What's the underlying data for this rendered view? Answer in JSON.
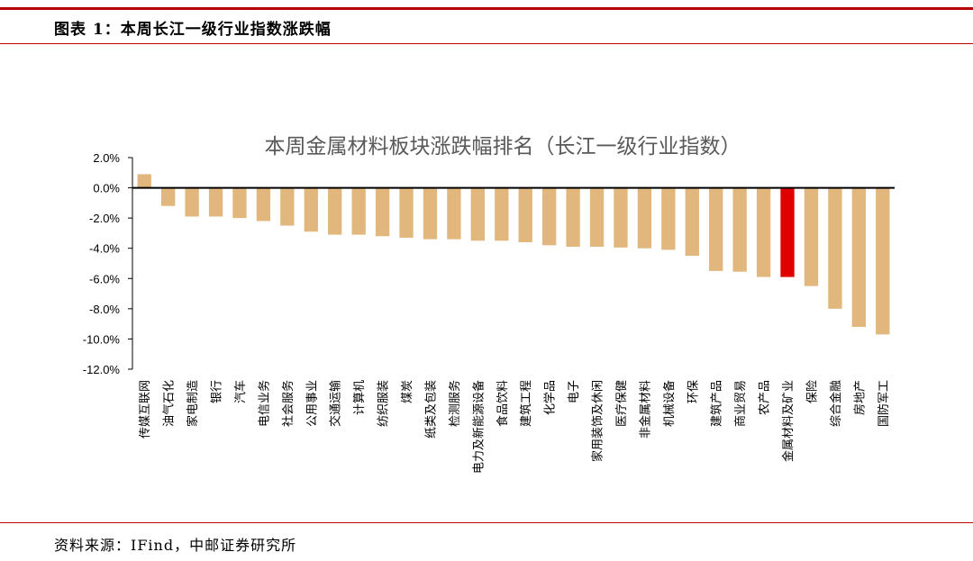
{
  "figure": {
    "title": "图表 1：本周长江一级行业指数涨跌幅",
    "source": "资料来源：IFind，中邮证券研究所"
  },
  "colors": {
    "bar": "#e2b77e",
    "highlight": "#e00000",
    "axis": "#000000",
    "title": "#595959"
  },
  "chart_data": {
    "type": "bar",
    "title": "本周金属材料板块涨跌幅排名（长江一级行业指数）",
    "xlabel": "",
    "ylabel": "",
    "ylim": [
      -12,
      2
    ],
    "ytick_step": 2,
    "ytick_format": "percent_1dp",
    "grid": false,
    "legend": "none",
    "highlight_category": "金属材料及矿业",
    "categories": [
      "传媒互联网",
      "油气石化",
      "家电制造",
      "银行",
      "汽车",
      "电信业务",
      "社会服务",
      "公用事业",
      "交通运输",
      "计算机",
      "纺织服装",
      "煤炭",
      "纸类及包装",
      "检测服务",
      "电力及新能源设备",
      "食品饮料",
      "建筑工程",
      "化学品",
      "电子",
      "家用装饰及休闲",
      "医疗保健",
      "非金属材料",
      "机械设备",
      "环保",
      "建筑产品",
      "商业贸易",
      "农产品",
      "金属材料及矿业",
      "保险",
      "综合金融",
      "房地产",
      "国防军工"
    ],
    "values": [
      0.9,
      -1.2,
      -1.9,
      -1.9,
      -2.0,
      -2.2,
      -2.5,
      -2.9,
      -3.1,
      -3.1,
      -3.2,
      -3.3,
      -3.4,
      -3.4,
      -3.5,
      -3.5,
      -3.6,
      -3.8,
      -3.9,
      -3.9,
      -3.95,
      -4.0,
      -4.1,
      -4.5,
      -5.5,
      -5.55,
      -5.9,
      -5.9,
      -6.5,
      -8.0,
      -9.2,
      -9.7
    ]
  }
}
